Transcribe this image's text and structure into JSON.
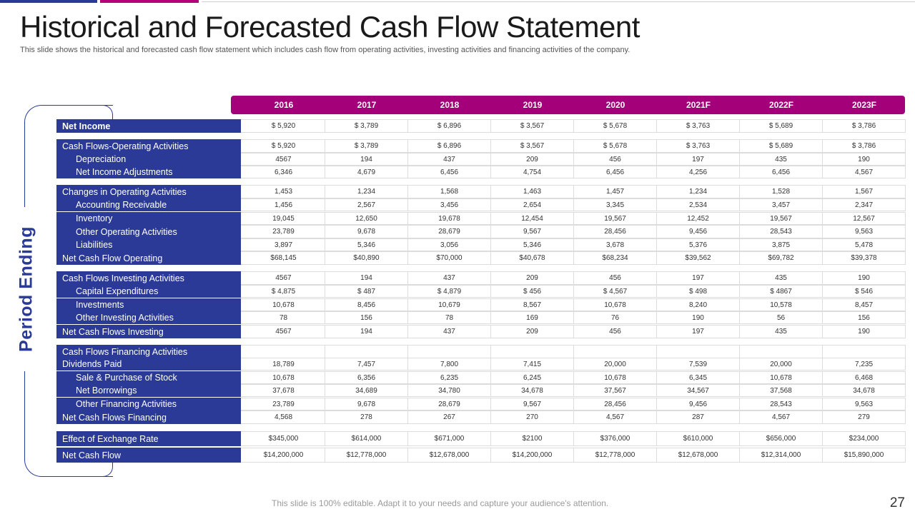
{
  "title": "Historical and Forecasted Cash Flow Statement",
  "subtitle": "This slide shows the historical and forecasted cash flow statement which includes cash flow from operating activities, investing activities and financing activities of the company.",
  "side_label": "Period Ending",
  "years": [
    "2016",
    "2017",
    "2018",
    "2019",
    "2020",
    "2021F",
    "2022F",
    "2023F"
  ],
  "rows": [
    {
      "label": "Net Income",
      "style": "bold",
      "values": [
        "$ 5,920",
        "$ 3,789",
        "$ 6,896",
        "$ 3,567",
        "$ 5,678",
        "$ 3,763",
        "$ 5,689",
        "$ 3,786"
      ]
    },
    {
      "label": "Cash Flows-Operating  Activities",
      "style": "",
      "values": [
        "$ 5,920",
        "$ 3,789",
        "$ 6,896",
        "$ 3,567",
        "$ 5,678",
        "$ 3,763",
        "$ 5,689",
        "$ 3,786"
      ]
    },
    {
      "label": "Depreciation",
      "style": "indent",
      "values": [
        "4567",
        "194",
        "437",
        "209",
        "456",
        "197",
        "435",
        "190"
      ]
    },
    {
      "label": "Net Income Adjustments",
      "style": "indent",
      "values": [
        "6,346",
        "4,679",
        "6,456",
        "4,754",
        "6,456",
        "4,256",
        "6,456",
        "4,567"
      ]
    },
    {
      "label": "Changes in Operating Activities",
      "style": "",
      "values": [
        "1,453",
        "1,234",
        "1,568",
        "1,463",
        "1,457",
        "1,234",
        "1,528",
        "1,567"
      ]
    },
    {
      "label": "Accounting Receivable",
      "style": "indent",
      "values": [
        "1,456",
        "2,567",
        "3,456",
        "2,654",
        "3,345",
        "2,534",
        "3,457",
        "2,347"
      ]
    },
    {
      "label": "Inventory",
      "style": "indent",
      "values": [
        "19,045",
        "12,650",
        "19,678",
        "12,454",
        "19,567",
        "12,452",
        "19,567",
        "12,567"
      ]
    },
    {
      "label": "Other Operating Activities",
      "style": "indent",
      "values": [
        "23,789",
        "9,678",
        "28,679",
        "9,567",
        "28,456",
        "9,456",
        "28,543",
        "9,563"
      ]
    },
    {
      "label": "Liabilities",
      "style": "indent",
      "values": [
        "3,897",
        "5,346",
        "3,056",
        "5,346",
        "3,678",
        "5,376",
        "3,875",
        "5,478"
      ]
    },
    {
      "label": "Net Cash Flow Operating",
      "style": "",
      "values": [
        "$68,145",
        "$40,890",
        "$70,000",
        "$40,678",
        "$68,234",
        "$39,562",
        "$69,782",
        "$39,378"
      ]
    },
    {
      "label": "Cash Flows Investing  Activities",
      "style": "",
      "values": [
        "4567",
        "194",
        "437",
        "209",
        "456",
        "197",
        "435",
        "190"
      ]
    },
    {
      "label": "Capital Expenditures",
      "style": "indent",
      "values": [
        "$ 4,875",
        "$ 487",
        "$ 4,879",
        "$ 456",
        "$ 4,567",
        "$ 498",
        "$ 4867",
        "$ 546"
      ]
    },
    {
      "label": "Investments",
      "style": "indent",
      "values": [
        "10,678",
        "8,456",
        "10,679",
        "8,567",
        "10,678",
        "8,240",
        "10,578",
        "8,457"
      ]
    },
    {
      "label": "Other Investing  Activities",
      "style": "indent",
      "values": [
        "78",
        "156",
        "78",
        "169",
        "76",
        "190",
        "56",
        "156"
      ]
    },
    {
      "label": "Net Cash Flows Investing",
      "style": "",
      "values": [
        "4567",
        "194",
        "437",
        "209",
        "456",
        "197",
        "435",
        "190"
      ]
    },
    {
      "label": "Cash Flows Financing Activities",
      "style": "",
      "values": [
        "",
        "",
        "",
        "",
        "",
        "",
        "",
        ""
      ]
    },
    {
      "label": "Dividends  Paid",
      "style": "",
      "values": [
        "18,789",
        "7,457",
        "7,800",
        "7,415",
        "20,000",
        "7,539",
        "20,000",
        "7,235"
      ]
    },
    {
      "label": "Sale & Purchase of Stock",
      "style": "indent",
      "values": [
        "10,678",
        "6,356",
        "6,235",
        "6,245",
        "10,678",
        "6,345",
        "10,678",
        "6,468"
      ]
    },
    {
      "label": "Net Borrowings",
      "style": "indent",
      "values": [
        "37,678",
        "34,689",
        "34,780",
        "34,678",
        "37,567",
        "34,567",
        "37,568",
        "34,678"
      ]
    },
    {
      "label": "Other Financing Activities",
      "style": "indent",
      "values": [
        "23,789",
        "9,678",
        "28,679",
        "9,567",
        "28,456",
        "9,456",
        "28,543",
        "9,563"
      ]
    },
    {
      "label": "Net Cash Flows Financing",
      "style": "",
      "values": [
        "4,568",
        "278",
        "267",
        "270",
        "4,567",
        "287",
        "4,567",
        "279"
      ]
    },
    {
      "label": "Effect of Exchange Rate",
      "style": "",
      "values": [
        "$345,000",
        "$614,000",
        "$671,000",
        "$2100",
        "$376,000",
        "$610,000",
        "$656,000",
        "$234,000"
      ]
    },
    {
      "label": "Net Cash Flow",
      "style": "",
      "values": [
        "$14,200,000",
        "$12,778,000",
        "$12,678,000",
        "$14,200,000",
        "$12,778,000",
        "$12,678,000",
        "$12,314,000",
        "$15,890,000"
      ]
    }
  ],
  "footer": "This slide is 100% editable. Adapt it to your needs and capture your audience's attention.",
  "page_number": "27",
  "colors": {
    "accent_blue": "#2b3a96",
    "accent_magenta": "#a3007a"
  }
}
